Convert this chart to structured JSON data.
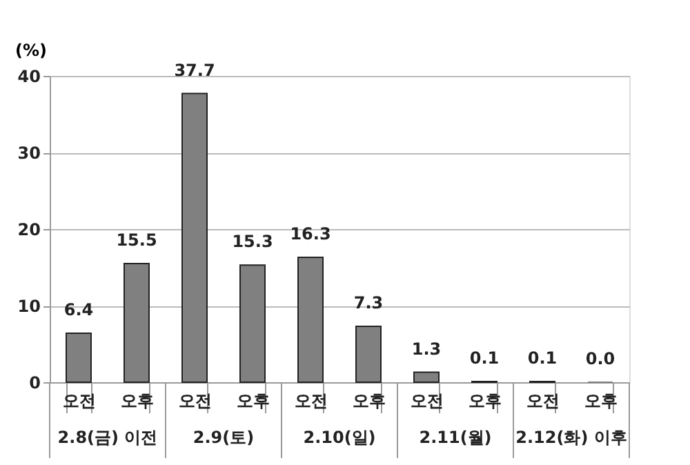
{
  "chart_data": {
    "type": "bar",
    "ylabel": "(%)",
    "categories": [
      "오전",
      "오후",
      "오전",
      "오후",
      "오전",
      "오후",
      "오전",
      "오후",
      "오전",
      "오후"
    ],
    "values": [
      6.4,
      15.5,
      37.7,
      15.3,
      16.3,
      7.3,
      1.3,
      0.1,
      0.1,
      0.0
    ],
    "color": "#808080",
    "value_labels": [
      "6.4",
      "15.5",
      "37.7",
      "15.3",
      "16.3",
      "7.3",
      "1.3",
      "0.1",
      "0.1",
      "0.0"
    ],
    "ylim": [
      0,
      40
    ],
    "yticks": [
      0,
      10,
      20,
      30,
      40
    ],
    "grid": "y",
    "annotations": [
      "2.8(금) 이전",
      "2.9(토)",
      "2.10(일)",
      "2.11(월)",
      "2.12(화) 이후"
    ]
  }
}
